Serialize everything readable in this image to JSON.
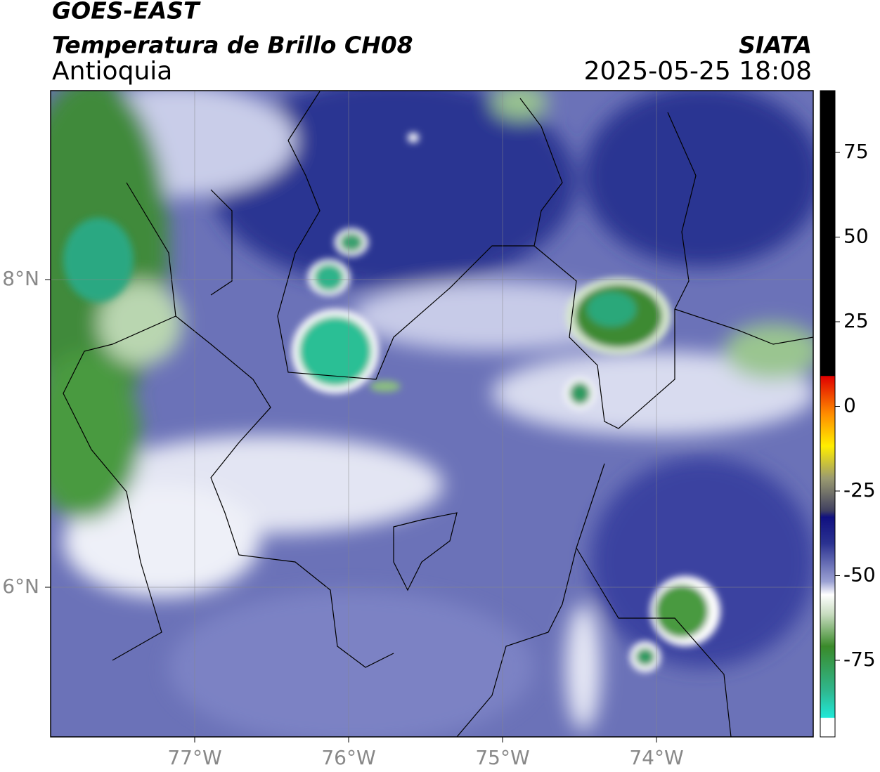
{
  "header": {
    "title": "GOES-EAST",
    "subtitle": "Temperatura de Brillo CH08",
    "region": "Antioquia",
    "source": "SIATA",
    "timestamp": "2025-05-25 18:08"
  },
  "map": {
    "lon_labels": [
      "77°W",
      "76°W",
      "75°W",
      "74°W"
    ],
    "lat_labels": [
      "8°N",
      "6°N"
    ]
  },
  "colorbar": {
    "ticks": [
      "75",
      "50",
      "25",
      "0",
      "-25",
      "-50",
      "-75"
    ]
  }
}
